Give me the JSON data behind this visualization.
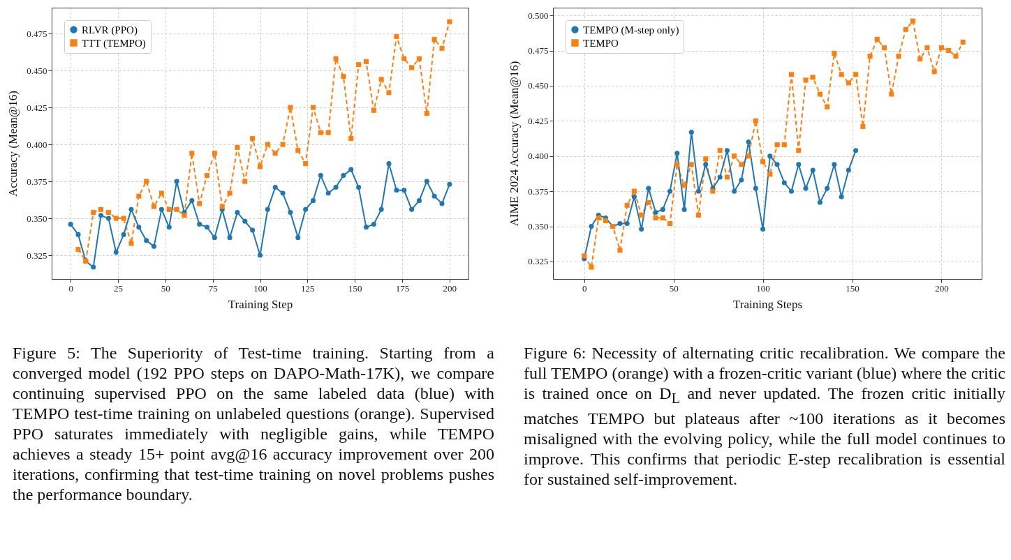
{
  "chart_data": [
    {
      "type": "line",
      "xlabel": "Training Step",
      "ylabel": "Accuracy (Mean@16)",
      "xlim": [
        -10,
        210
      ],
      "xticks": [
        0,
        25,
        50,
        75,
        100,
        125,
        150,
        175,
        200
      ],
      "ylim": [
        0.309,
        0.4925
      ],
      "yticks": [
        0.325,
        {
          "value": 0.35,
          "label": "0.350"
        },
        0.375,
        {
          "value": 0.4,
          "label": "0.400"
        },
        0.425,
        {
          "value": 0.45,
          "label": "0.450"
        },
        0.475
      ],
      "grid": true,
      "legend": "top left",
      "series": [
        {
          "name": "RLVR (PPO)",
          "color": "#1f77b4",
          "marker": "circle",
          "line_style": "solid",
          "x": [
            0,
            4,
            8,
            12,
            16,
            20,
            24,
            28,
            32,
            36,
            40,
            44,
            48,
            52,
            56,
            60,
            64,
            68,
            72,
            76,
            80,
            84,
            88,
            92,
            96,
            100,
            104,
            108,
            112,
            116,
            120,
            124,
            128,
            132,
            136,
            140,
            144,
            148,
            152,
            156,
            160,
            164,
            168,
            172,
            176,
            180,
            184,
            188,
            192,
            196,
            200
          ],
          "values": [
            0.346,
            0.339,
            0.321,
            0.317,
            0.352,
            0.35,
            0.327,
            0.339,
            0.356,
            0.344,
            0.335,
            0.331,
            0.356,
            0.344,
            0.375,
            0.354,
            0.362,
            0.346,
            0.344,
            0.337,
            0.356,
            0.337,
            0.354,
            0.348,
            0.342,
            0.325,
            0.356,
            0.371,
            0.367,
            0.354,
            0.337,
            0.356,
            0.362,
            0.379,
            0.367,
            0.371,
            0.379,
            0.383,
            0.371,
            0.344,
            0.346,
            0.356,
            0.387,
            0.369,
            0.369,
            0.356,
            0.362,
            0.375,
            0.365,
            0.36,
            0.373
          ]
        },
        {
          "name": "TTT (TEMPO)",
          "color": "#ff7f0e",
          "marker": "square",
          "line_style": "dashed",
          "x": [
            4,
            8,
            12,
            16,
            20,
            24,
            28,
            32,
            36,
            40,
            44,
            48,
            52,
            56,
            60,
            64,
            68,
            72,
            76,
            80,
            84,
            88,
            92,
            96,
            100,
            104,
            108,
            112,
            116,
            120,
            124,
            128,
            132,
            136,
            140,
            144,
            148,
            152,
            156,
            160,
            164,
            168,
            172,
            176,
            180,
            184,
            188,
            192,
            196,
            200
          ],
          "values": [
            0.329,
            0.321,
            0.354,
            0.356,
            0.354,
            0.35,
            0.35,
            0.333,
            0.365,
            0.375,
            0.358,
            0.367,
            0.356,
            0.356,
            0.352,
            0.394,
            0.36,
            0.379,
            0.394,
            0.358,
            0.367,
            0.398,
            0.375,
            0.404,
            0.385,
            0.4,
            0.394,
            0.4,
            0.425,
            0.396,
            0.387,
            0.425,
            0.408,
            0.408,
            0.458,
            0.446,
            0.404,
            0.454,
            0.456,
            0.423,
            0.444,
            0.435,
            0.473,
            0.458,
            0.452,
            0.458,
            0.421,
            0.471,
            0.465,
            0.483
          ]
        }
      ],
      "annotations": [
        "Figure 5: The Superiority of Test-time training. Starting from a converged model (192 PPO steps on DAPO-Math-17K), we compare continuing supervised PPO on the same labeled data (blue) with TEMPO test-time training on unlabeled questions (orange). Supervised PPO saturates immediately with negligible gains, while TEMPO achieves a steady 15+ point avg@16 accuracy improvement over 200 iterations, confirming that test-time training on novel problems pushes the performance boundary."
      ]
    },
    {
      "type": "line",
      "xlabel": "Training Steps",
      "ylabel": "AIME 2024 Accuracy (Mean@16)",
      "xlim": [
        -17.5,
        222.5
      ],
      "xticks": [
        0,
        50,
        100,
        150,
        200
      ],
      "ylim": [
        0.3126,
        0.5055
      ],
      "yticks": [
        0.325,
        {
          "value": 0.35,
          "label": "0.350"
        },
        0.375,
        {
          "value": 0.4,
          "label": "0.400"
        },
        0.425,
        {
          "value": 0.45,
          "label": "0.450"
        },
        0.475,
        {
          "value": 0.5,
          "label": "0.500"
        }
      ],
      "grid": true,
      "legend": "top left",
      "series": [
        {
          "name": "TEMPO (M-step only)",
          "color": "#1f77b4",
          "marker": "circle",
          "line_style": "solid",
          "x": [
            0,
            4,
            8,
            12,
            16,
            20,
            24,
            28,
            32,
            36,
            40,
            44,
            48,
            52,
            56,
            60,
            64,
            68,
            72,
            76,
            80,
            84,
            88,
            92,
            96,
            100,
            104,
            108,
            112,
            116,
            120,
            124,
            128,
            132,
            136,
            140,
            144,
            148,
            152
          ],
          "values": [
            0.327,
            0.35,
            0.358,
            0.356,
            0.35,
            0.352,
            0.352,
            0.371,
            0.348,
            0.377,
            0.36,
            0.362,
            0.375,
            0.402,
            0.362,
            0.417,
            0.375,
            0.394,
            0.377,
            0.385,
            0.404,
            0.375,
            0.383,
            0.41,
            0.377,
            0.348,
            0.4,
            0.394,
            0.381,
            0.375,
            0.394,
            0.377,
            0.39,
            0.367,
            0.377,
            0.394,
            0.371,
            0.39,
            0.404
          ]
        },
        {
          "name": "TEMPO",
          "color": "#ff7f0e",
          "marker": "square",
          "line_style": "dashed",
          "x": [
            0,
            4,
            8,
            12,
            16,
            20,
            24,
            28,
            32,
            36,
            40,
            44,
            48,
            52,
            56,
            60,
            64,
            68,
            72,
            76,
            80,
            84,
            88,
            92,
            96,
            100,
            104,
            108,
            112,
            116,
            120,
            124,
            128,
            132,
            136,
            140,
            144,
            148,
            152,
            156,
            160,
            164,
            168,
            172,
            176,
            180,
            184,
            188,
            192,
            196,
            200,
            204,
            208,
            212
          ],
          "values": [
            0.329,
            0.321,
            0.356,
            0.354,
            0.35,
            0.333,
            0.365,
            0.375,
            0.358,
            0.367,
            0.356,
            0.356,
            0.352,
            0.394,
            0.379,
            0.394,
            0.358,
            0.398,
            0.375,
            0.404,
            0.385,
            0.4,
            0.394,
            0.4,
            0.425,
            0.396,
            0.387,
            0.408,
            0.408,
            0.458,
            0.404,
            0.454,
            0.456,
            0.444,
            0.435,
            0.473,
            0.458,
            0.452,
            0.458,
            0.421,
            0.471,
            0.483,
            0.477,
            0.444,
            0.471,
            0.49,
            0.496,
            0.469,
            0.477,
            0.46,
            0.477,
            0.475,
            0.471,
            0.481
          ]
        }
      ],
      "annotations": [
        "Figure 6: Necessity of alternating critic recalibration. We compare the full TEMPO (orange) with a frozen-critic variant (blue) where the critic is trained once on D$_{L}$ and never updated. The frozen critic initially matches TEMPO but plateaus after ~100 iterations as it becomes misaligned with the evolving policy, while the full model continues to improve. This confirms that periodic E-step recalibration is essential for sustained self-improvement."
      ]
    }
  ]
}
